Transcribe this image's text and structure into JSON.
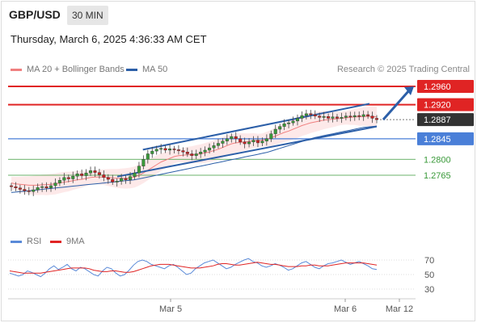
{
  "header": {
    "symbol": "GBP/USD",
    "timeframe": "30 MIN",
    "datetime": "Thursday, March 6, 2025 4:36:33 AM CET"
  },
  "legend": {
    "ma20_label": "MA 20 + Bollinger Bands",
    "ma50_label": "MA 50",
    "research": "Research © 2025 Trading Central"
  },
  "rsi_legend": {
    "rsi_label": "RSI",
    "ma9_label": "9MA"
  },
  "colors": {
    "resistance": "#e02424",
    "pivot": "#4a7fd8",
    "support": "#3a9a3a",
    "ma20": "#f08080",
    "ma50": "#2c5fa8",
    "channel": "#2c5fa8",
    "bull_candle": "#3a9a3a",
    "bear_candle": "#cc2222",
    "arrow": "#2c5fa8",
    "rsi": "#5a8ad8",
    "rsi_ma": "#e02424"
  },
  "chart_data": {
    "type": "candlestick",
    "price_levels": [
      {
        "value": 1.296,
        "label": "1.2960",
        "kind": "resistance"
      },
      {
        "value": 1.292,
        "label": "1.2920",
        "kind": "resistance"
      },
      {
        "value": 1.2887,
        "label": "1.2887",
        "kind": "last-price"
      },
      {
        "value": 1.2845,
        "label": "1.2845",
        "kind": "pivot"
      },
      {
        "value": 1.28,
        "label": "1.2800",
        "kind": "support"
      },
      {
        "value": 1.2765,
        "label": "1.2765",
        "kind": "support"
      }
    ],
    "x_ticks": [
      "Mar 5",
      "Mar 6",
      "Mar 12"
    ],
    "rsi_ticks": [
      70,
      50,
      30
    ],
    "candles_close": [
      1.274,
      1.2737,
      1.2734,
      1.2731,
      1.2729,
      1.2733,
      1.2738,
      1.274,
      1.2737,
      1.2742,
      1.2748,
      1.2754,
      1.276,
      1.2757,
      1.2763,
      1.2768,
      1.2764,
      1.277,
      1.2775,
      1.2771,
      1.2766,
      1.276,
      1.2756,
      1.275,
      1.2752,
      1.2758,
      1.2755,
      1.2762,
      1.277,
      1.2785,
      1.28,
      1.2812,
      1.2818,
      1.2822,
      1.2824,
      1.282,
      1.2823,
      1.2821,
      1.2819,
      1.2816,
      1.2812,
      1.2808,
      1.2812,
      1.2816,
      1.282,
      1.2825,
      1.283,
      1.2835,
      1.284,
      1.2845,
      1.285,
      1.2845,
      1.2838,
      1.2834,
      1.2838,
      1.2842,
      1.2836,
      1.284,
      1.2845,
      1.2856,
      1.2866,
      1.2872,
      1.2878,
      1.288,
      1.2884,
      1.289,
      1.2896,
      1.29,
      1.2898,
      1.2895,
      1.2892,
      1.2894,
      1.289,
      1.2893,
      1.289,
      1.2892,
      1.2895,
      1.2893,
      1.2896,
      1.2894,
      1.2898,
      1.2895,
      1.289,
      1.2887
    ],
    "ma20": [
      1.2748,
      1.2746,
      1.2745,
      1.2744,
      1.2743,
      1.2743,
      1.2743,
      1.2744,
      1.2744,
      1.2745,
      1.2746,
      1.2748,
      1.275,
      1.2751,
      1.2753,
      1.2755,
      1.2756,
      1.2758,
      1.276,
      1.2761,
      1.2761,
      1.2761,
      1.276,
      1.2759,
      1.2758,
      1.2758,
      1.2758,
      1.2759,
      1.2761,
      1.2765,
      1.277,
      1.2776,
      1.2782,
      1.2788,
      1.2794,
      1.2798,
      1.2802,
      1.2806,
      1.2808,
      1.2809,
      1.281,
      1.281,
      1.2811,
      1.2812,
      1.2814,
      1.2816,
      1.2819,
      1.2822,
      1.2826,
      1.283,
      1.2834,
      1.2836,
      1.2837,
      1.2838,
      1.2839,
      1.2841,
      1.2841,
      1.2842,
      1.2844,
      1.2847,
      1.2851,
      1.2855,
      1.2859,
      1.2862,
      1.2866,
      1.287,
      1.2874,
      1.2877,
      1.288,
      1.2882,
      1.2884,
      1.2886,
      1.2887,
      1.2888,
      1.2889,
      1.289,
      1.2891,
      1.2892,
      1.2893,
      1.2893,
      1.2894,
      1.2894,
      1.2894,
      1.2893
    ],
    "ma50": [
      1.2727,
      1.2728,
      1.2729,
      1.273,
      1.2731,
      1.2732,
      1.2733,
      1.2734,
      1.2735,
      1.2736,
      1.2737,
      1.2738,
      1.2739,
      1.274,
      1.2741,
      1.2742,
      1.2743,
      1.2744,
      1.2745,
      1.2746,
      1.2747,
      1.2748,
      1.2749,
      1.275,
      1.2751,
      1.2752,
      1.2753,
      1.2754,
      1.2755,
      1.2757,
      1.2759,
      1.2761,
      1.2763,
      1.2765,
      1.2767,
      1.2769,
      1.2771,
      1.2773,
      1.2775,
      1.2777,
      1.2779,
      1.2781,
      1.2783,
      1.2785,
      1.2787,
      1.2789,
      1.2791,
      1.2793,
      1.2795,
      1.2797,
      1.2799,
      1.2801,
      1.2803,
      1.2805,
      1.2807,
      1.2809,
      1.2811,
      1.2813,
      1.2815,
      1.2818,
      1.2821,
      1.2824,
      1.2827,
      1.283,
      1.2833,
      1.2836,
      1.2839,
      1.2842,
      1.2845,
      1.2848,
      1.285,
      1.2852,
      1.2854,
      1.2856,
      1.2858,
      1.286,
      1.2862,
      1.2864,
      1.2866,
      1.2868,
      1.287,
      1.2871,
      1.2872,
      1.2873
    ],
    "channel_upper": {
      "from": [
        1.2821,
        0.36
      ],
      "to": [
        1.2922,
        0.98
      ]
    },
    "channel_lower": {
      "from": [
        1.2762,
        0.29
      ],
      "to": [
        1.2872,
        1.0
      ]
    },
    "projection_arrow": {
      "from": 1.2887,
      "to": 1.296
    },
    "rsi": [
      52,
      50,
      48,
      50,
      55,
      53,
      50,
      47,
      52,
      58,
      62,
      57,
      60,
      64,
      58,
      55,
      60,
      58,
      54,
      50,
      48,
      55,
      60,
      58,
      52,
      48,
      50,
      56,
      63,
      68,
      70,
      68,
      64,
      62,
      60,
      58,
      62,
      64,
      60,
      55,
      50,
      52,
      58,
      62,
      66,
      68,
      70,
      66,
      62,
      58,
      60,
      64,
      67,
      70,
      72,
      68,
      66,
      62,
      60,
      62,
      65,
      63,
      60,
      56,
      58,
      62,
      66,
      68,
      64,
      60,
      58,
      62,
      65,
      66,
      68,
      70,
      67,
      64,
      66,
      68,
      65,
      62,
      58,
      57
    ],
    "rsi_ma": [
      55,
      54,
      53,
      52,
      52,
      52,
      52,
      52,
      53,
      54,
      55,
      56,
      57,
      58,
      59,
      59,
      59,
      59,
      58,
      56,
      55,
      54,
      54,
      55,
      55,
      54,
      53,
      53,
      54,
      56,
      58,
      60,
      62,
      63,
      64,
      64,
      64,
      63,
      62,
      61,
      60,
      59,
      59,
      59,
      60,
      61,
      62,
      64,
      65,
      65,
      64,
      63,
      63,
      64,
      65,
      66,
      67,
      66,
      65,
      64,
      64,
      63,
      62,
      61,
      61,
      61,
      62,
      62,
      63,
      63,
      62,
      62,
      62,
      63,
      64,
      65,
      66,
      66,
      66,
      66,
      66,
      65,
      64,
      63
    ]
  }
}
